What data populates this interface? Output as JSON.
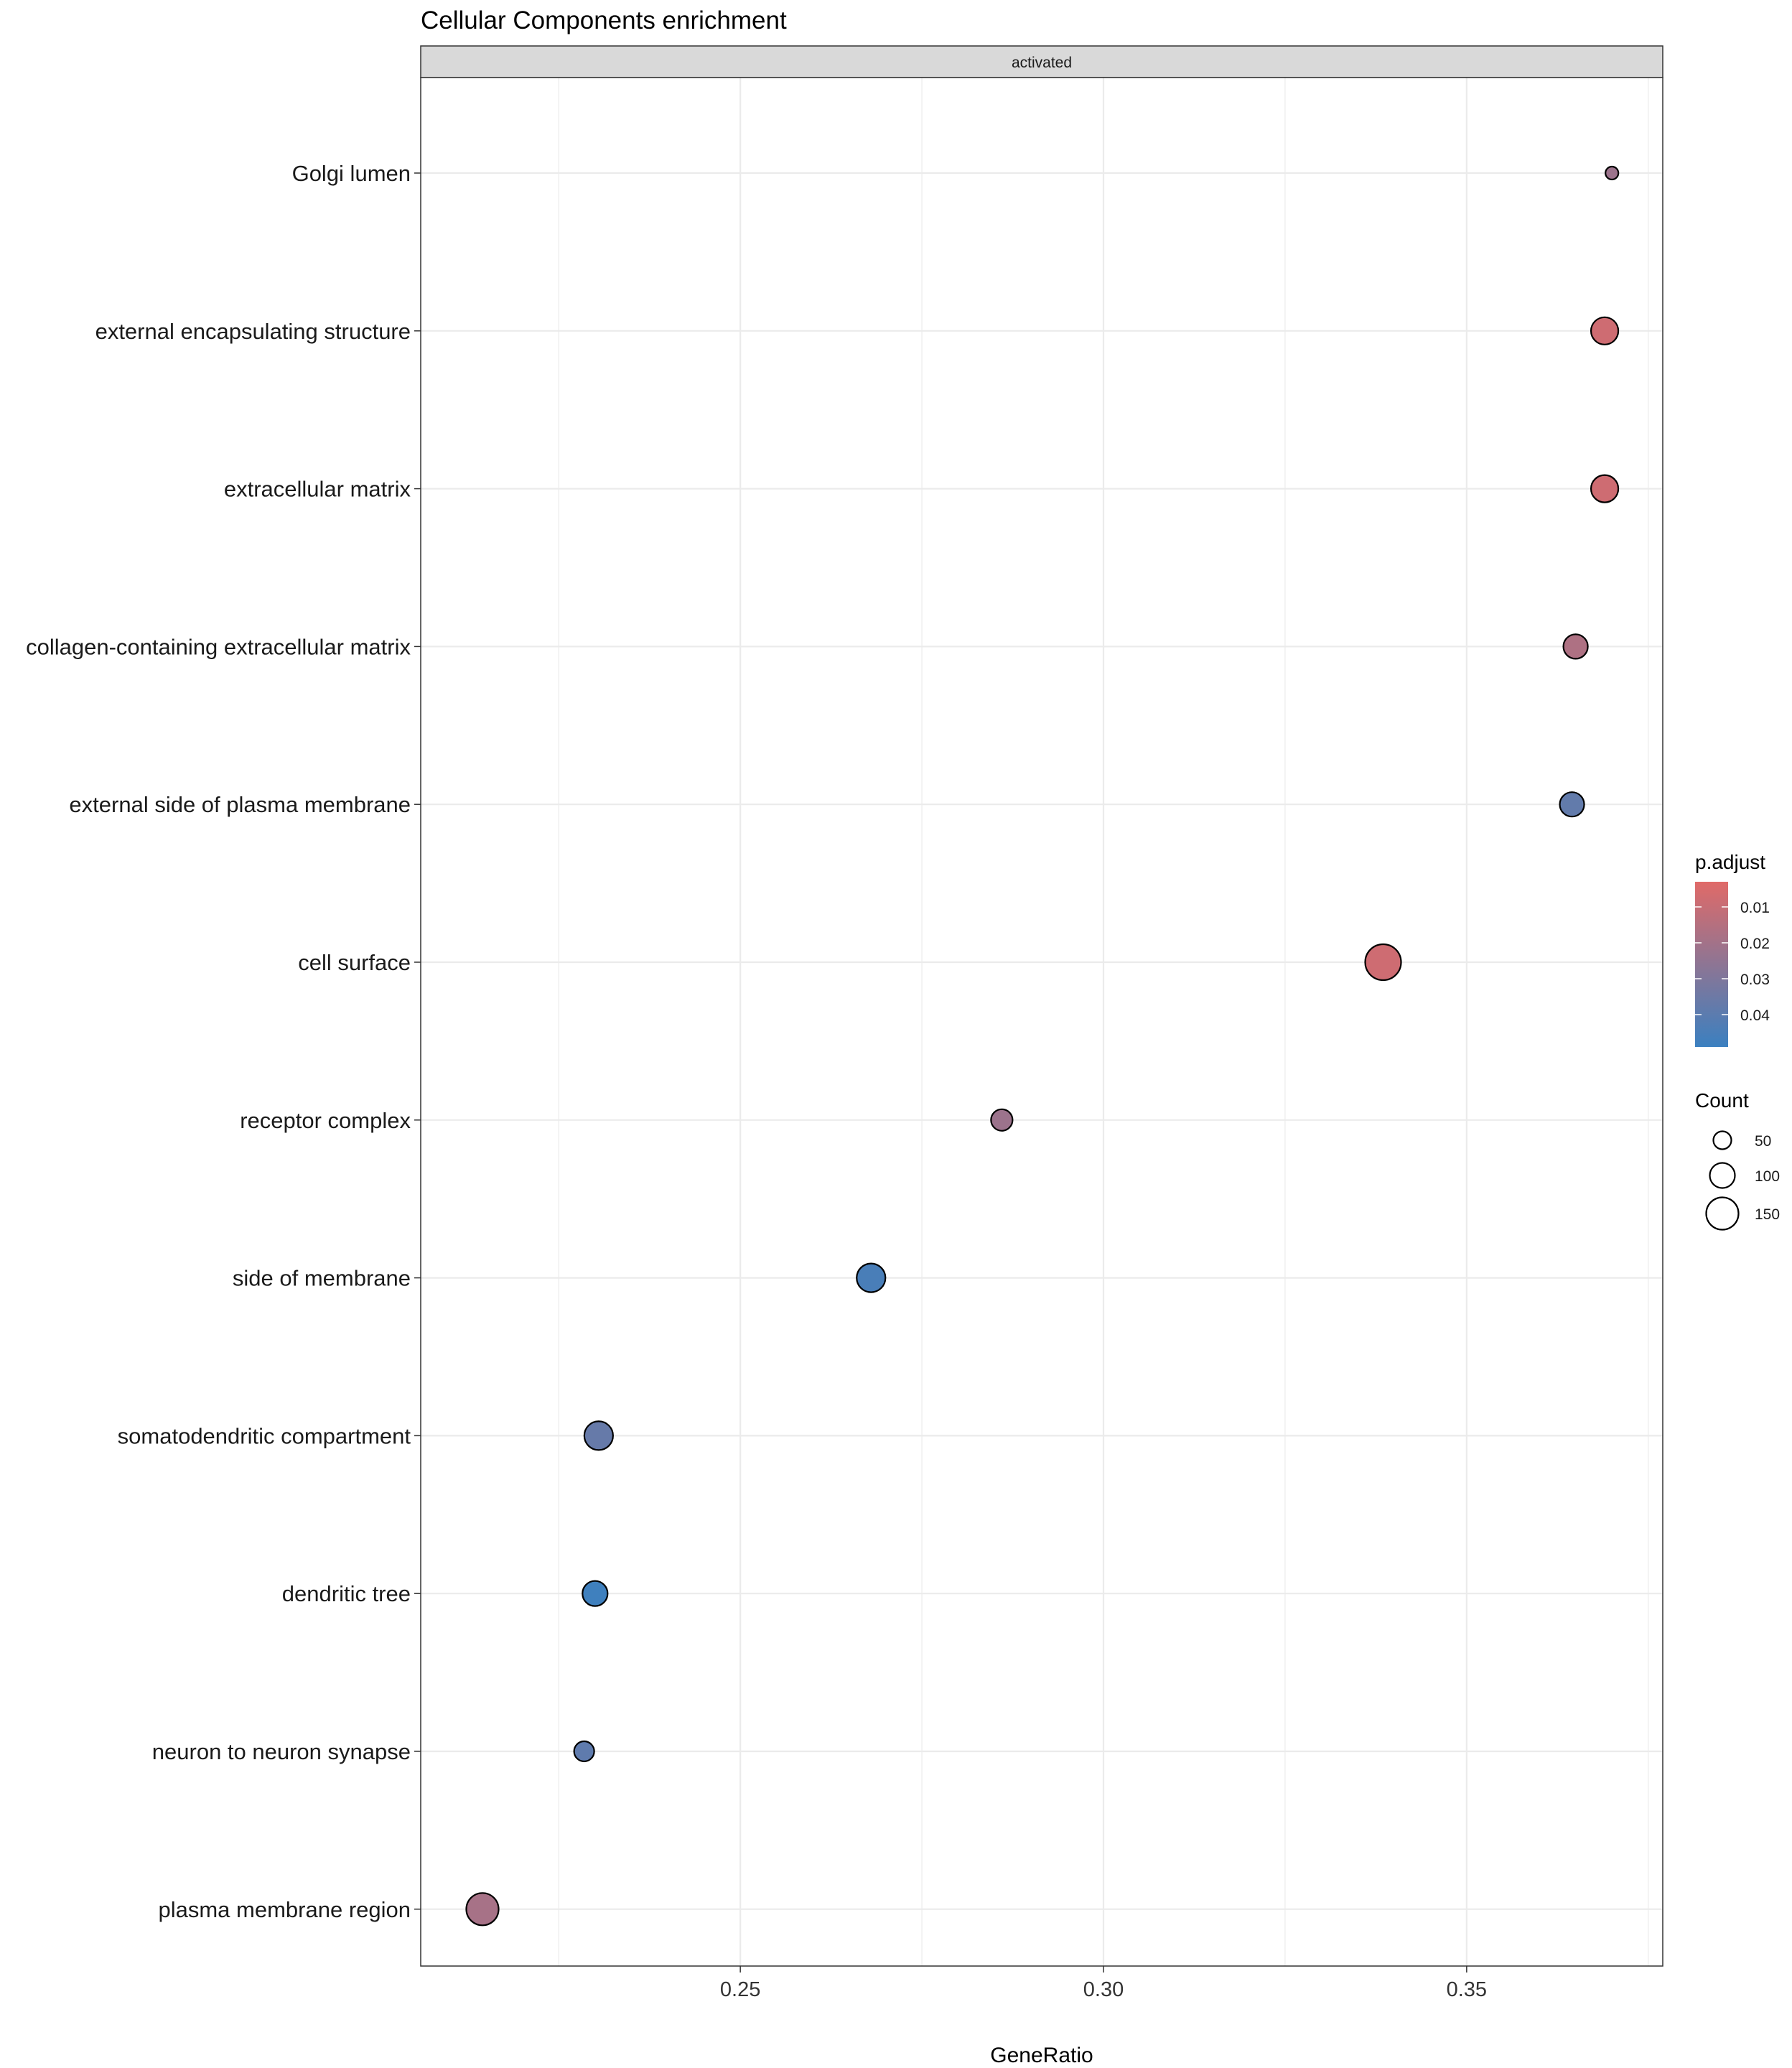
{
  "chart_data": {
    "type": "scatter",
    "title": "Cellular Components enrichment",
    "facet": "activated",
    "xlabel": "GeneRatio",
    "ylabel": "",
    "xlim": [
      0.206,
      0.377
    ],
    "xticks": [
      0.25,
      0.3,
      0.35
    ],
    "xtick_labels": [
      "0.25",
      "0.30",
      "0.35"
    ],
    "grid": true,
    "categories": [
      "Golgi lumen",
      "external encapsulating structure",
      "extracellular matrix",
      "collagen-containing extracellular matrix",
      "external side of plasma membrane",
      "cell surface",
      "receptor complex",
      "side of membrane",
      "somatodendritic compartment",
      "dendritic tree",
      "neuron to neuron synapse",
      "plasma membrane region"
    ],
    "points": [
      {
        "term": "Golgi lumen",
        "gene_ratio": 0.37,
        "count": 15,
        "p_adjust": 0.022
      },
      {
        "term": "external encapsulating structure",
        "gene_ratio": 0.369,
        "count": 115,
        "p_adjust": 0.008
      },
      {
        "term": "extracellular matrix",
        "gene_ratio": 0.369,
        "count": 115,
        "p_adjust": 0.008
      },
      {
        "term": "collagen-containing extracellular matrix",
        "gene_ratio": 0.365,
        "count": 95,
        "p_adjust": 0.017
      },
      {
        "term": "external side of plasma membrane",
        "gene_ratio": 0.3645,
        "count": 95,
        "p_adjust": 0.038
      },
      {
        "term": "cell surface",
        "gene_ratio": 0.3385,
        "count": 175,
        "p_adjust": 0.008
      },
      {
        "term": "receptor complex",
        "gene_ratio": 0.286,
        "count": 75,
        "p_adjust": 0.022
      },
      {
        "term": "side of membrane",
        "gene_ratio": 0.268,
        "count": 125,
        "p_adjust": 0.045
      },
      {
        "term": "somatodendritic compartment",
        "gene_ratio": 0.2305,
        "count": 125,
        "p_adjust": 0.037
      },
      {
        "term": "dendritic tree",
        "gene_ratio": 0.23,
        "count": 100,
        "p_adjust": 0.048
      },
      {
        "term": "neuron to neuron synapse",
        "gene_ratio": 0.2285,
        "count": 65,
        "p_adjust": 0.039
      },
      {
        "term": "plasma membrane region",
        "gene_ratio": 0.2145,
        "count": 150,
        "p_adjust": 0.019
      }
    ],
    "color_legend": {
      "title": "p.adjust",
      "range": [
        0.003,
        0.049
      ],
      "low_color": "#e06a68",
      "high_color": "#3b80c0",
      "ticks": [
        0.01,
        0.02,
        0.03,
        0.04
      ],
      "tick_labels": [
        "0.01",
        "0.02",
        "0.03",
        "0.04"
      ]
    },
    "size_legend": {
      "title": "Count",
      "values": [
        50,
        100,
        150
      ],
      "labels": [
        "50",
        "100",
        "150"
      ]
    }
  }
}
